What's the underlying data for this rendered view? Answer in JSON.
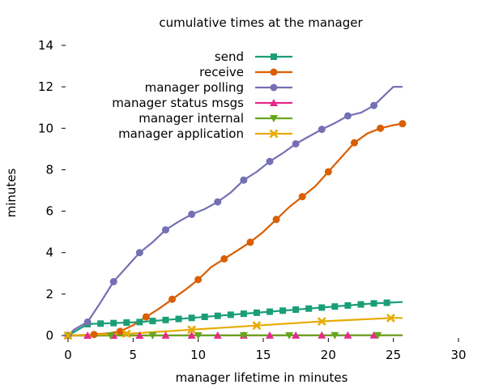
{
  "chart_data": {
    "type": "line",
    "title": "cumulative times at the manager",
    "xlabel": "manager lifetime in minutes",
    "ylabel": "minutes",
    "xlim": [
      0,
      30
    ],
    "ylim": [
      0,
      14
    ],
    "xticks": [
      0,
      5,
      10,
      15,
      20,
      25,
      30
    ],
    "yticks": [
      0,
      2,
      4,
      6,
      8,
      10,
      12,
      14
    ],
    "grid": false,
    "legend_position": "top-right",
    "series": [
      {
        "name": "send",
        "color": "#1b9e77",
        "marker": "square",
        "x": [
          0,
          1.5,
          3.5,
          5.5,
          7.5,
          9.5,
          11.5,
          13.5,
          15.5,
          17.5,
          19.5,
          21.5,
          23.5,
          25.7
        ],
        "y": [
          0,
          0.55,
          0.6,
          0.65,
          0.75,
          0.85,
          0.95,
          1.05,
          1.15,
          1.25,
          1.35,
          1.45,
          1.55,
          1.62
        ],
        "marker_x": [
          0,
          1.5,
          2.5,
          3.5,
          4.5,
          5.5,
          6.5,
          7.5,
          8.5,
          9.5,
          10.5,
          11.5,
          12.5,
          13.5,
          14.5,
          15.5,
          16.5,
          17.5,
          18.5,
          19.5,
          20.5,
          21.5,
          22.5,
          23.5,
          24.5
        ]
      },
      {
        "name": "receive",
        "color": "#d95f02",
        "marker": "circle",
        "x": [
          0,
          1,
          2,
          3,
          4,
          5,
          6,
          7,
          8,
          9,
          10,
          11,
          12,
          13,
          14,
          15,
          16,
          17,
          18,
          19,
          20,
          21,
          22,
          23,
          24,
          25,
          25.7
        ],
        "y": [
          0,
          0.02,
          0.05,
          0.1,
          0.2,
          0.5,
          0.9,
          1.3,
          1.75,
          2.2,
          2.7,
          3.3,
          3.7,
          4.1,
          4.5,
          5.0,
          5.6,
          6.2,
          6.7,
          7.2,
          7.9,
          8.6,
          9.3,
          9.75,
          10.0,
          10.15,
          10.22
        ],
        "marker_x": [
          0,
          2,
          4,
          6,
          8,
          10,
          12,
          14,
          16,
          18,
          20,
          22,
          24,
          25.7
        ]
      },
      {
        "name": "manager polling",
        "color": "#7570b3",
        "marker": "circle",
        "x": [
          0,
          0.5,
          1.5,
          2.5,
          3.5,
          4.5,
          5.5,
          6.5,
          7.5,
          8.5,
          9.5,
          10.5,
          11.5,
          12.5,
          13.5,
          14.5,
          15.5,
          16.5,
          17.5,
          18.5,
          19.5,
          20.5,
          21.5,
          22.5,
          23.5,
          24.5,
          25,
          25.7
        ],
        "y": [
          0,
          0.3,
          0.65,
          1.6,
          2.6,
          3.3,
          4.0,
          4.5,
          5.1,
          5.5,
          5.85,
          6.1,
          6.45,
          6.9,
          7.5,
          7.9,
          8.4,
          8.8,
          9.25,
          9.6,
          9.95,
          10.25,
          10.6,
          10.75,
          11.1,
          11.7,
          12.0,
          12.0
        ],
        "marker_x": [
          0,
          1.5,
          3.5,
          5.5,
          7.5,
          9.5,
          11.5,
          13.5,
          15.5,
          17.5,
          19.5,
          21.5,
          23.5
        ]
      },
      {
        "name": "manager status msgs",
        "color": "#e7298a",
        "marker": "triangle",
        "x": [
          0,
          25.7
        ],
        "y": [
          0,
          0.01
        ],
        "marker_x": [
          0,
          1.5,
          3.5,
          5.5,
          7.5,
          9.5,
          11.5,
          13.5,
          15.5,
          17.5,
          19.5,
          21.5,
          23.5
        ]
      },
      {
        "name": "manager internal",
        "color": "#66a61e",
        "marker": "triangle-down",
        "x": [
          0,
          25.7
        ],
        "y": [
          0,
          0.01
        ],
        "marker_x": [
          0,
          3.3,
          6.5,
          10,
          13.5,
          17,
          20.5,
          23.8
        ]
      },
      {
        "name": "manager application",
        "color": "#e6ab02",
        "marker": "x",
        "x": [
          0,
          5,
          10,
          15,
          20,
          25,
          25.7
        ],
        "y": [
          0,
          0.1,
          0.3,
          0.5,
          0.7,
          0.85,
          0.85
        ],
        "marker_x": [
          0,
          4.5,
          9.5,
          14.5,
          19.5,
          24.8
        ]
      }
    ]
  }
}
